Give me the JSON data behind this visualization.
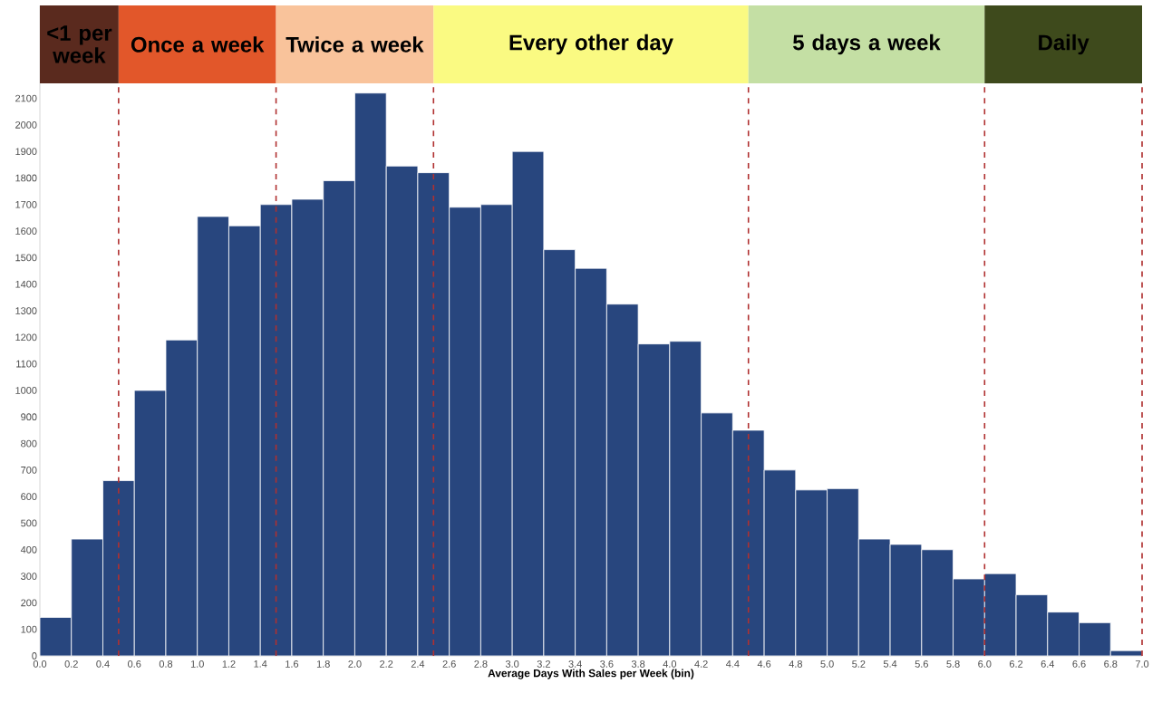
{
  "chart_data": {
    "type": "histogram",
    "xlabel": "Average Days With Sales per Week (bin)",
    "bins": [
      0.0,
      0.2,
      0.4,
      0.6,
      0.8,
      1.0,
      1.2,
      1.4,
      1.6,
      1.8,
      2.0,
      2.2,
      2.4,
      2.6,
      2.8,
      3.0,
      3.2,
      3.4,
      3.6,
      3.8,
      4.0,
      4.2,
      4.4,
      4.6,
      4.8,
      5.0,
      5.2,
      5.4,
      5.6,
      5.8,
      6.0,
      6.2,
      6.4,
      6.6,
      6.8,
      7.0
    ],
    "values": [
      145,
      440,
      660,
      1000,
      1190,
      1655,
      1620,
      1700,
      1720,
      1790,
      2120,
      1845,
      1820,
      1690,
      1700,
      1900,
      1530,
      1460,
      1325,
      1175,
      1185,
      915,
      850,
      700,
      625,
      630,
      440,
      420,
      400,
      290,
      310,
      230,
      165,
      125,
      20
    ],
    "color": "#28467e",
    "xlim": [
      0,
      7.0
    ],
    "ylim": [
      0,
      2450
    ],
    "xticks": [
      {
        "value": 0,
        "label": "0.0"
      },
      {
        "value": 0.2,
        "label": "0.2"
      },
      {
        "value": 0.4,
        "label": "0.4"
      },
      {
        "value": 0.6,
        "label": "0.6"
      },
      {
        "value": 0.8,
        "label": "0.8"
      },
      {
        "value": 1.0,
        "label": "1.0"
      },
      {
        "value": 1.2,
        "label": "1.2"
      },
      {
        "value": 1.4,
        "label": "1.4"
      },
      {
        "value": 1.6,
        "label": "1.6"
      },
      {
        "value": 1.8,
        "label": "1.8"
      },
      {
        "value": 2.0,
        "label": "2.0"
      },
      {
        "value": 2.2,
        "label": "2.2"
      },
      {
        "value": 2.4,
        "label": "2.4"
      },
      {
        "value": 2.6,
        "label": "2.6"
      },
      {
        "value": 2.8,
        "label": "2.8"
      },
      {
        "value": 3.0,
        "label": "3.0"
      },
      {
        "value": 3.2,
        "label": "3.2"
      },
      {
        "value": 3.4,
        "label": "3.4"
      },
      {
        "value": 3.6,
        "label": "3.6"
      },
      {
        "value": 3.8,
        "label": "3.8"
      },
      {
        "value": 4.0,
        "label": "4.0"
      },
      {
        "value": 4.2,
        "label": "4.2"
      },
      {
        "value": 4.4,
        "label": "4.4"
      },
      {
        "value": 4.6,
        "label": "4.6"
      },
      {
        "value": 4.8,
        "label": "4.8"
      },
      {
        "value": 5.0,
        "label": "5.0"
      },
      {
        "value": 5.2,
        "label": "5.2"
      },
      {
        "value": 5.4,
        "label": "5.4"
      },
      {
        "value": 5.6,
        "label": "5.6"
      },
      {
        "value": 5.8,
        "label": "5.8"
      },
      {
        "value": 6.0,
        "label": "6.0"
      },
      {
        "value": 6.2,
        "label": "6.2"
      },
      {
        "value": 6.4,
        "label": "6.4"
      },
      {
        "value": 6.6,
        "label": "6.6"
      },
      {
        "value": 6.8,
        "label": "6.8"
      },
      {
        "value": 7.0,
        "label": "7.0"
      }
    ],
    "yticks": [
      0,
      100,
      200,
      300,
      400,
      500,
      600,
      700,
      800,
      900,
      1000,
      1100,
      1200,
      1300,
      1400,
      1500,
      1600,
      1700,
      1800,
      1900,
      2000,
      2100
    ],
    "bands": [
      {
        "axis": "x",
        "from": 0,
        "to": 0.5,
        "label": "<1 per week",
        "color": "#5a2a1e"
      },
      {
        "axis": "x",
        "from": 0.5,
        "to": 1.5,
        "label": "Once a week",
        "color": "#e2572a"
      },
      {
        "axis": "x",
        "from": 1.5,
        "to": 2.5,
        "label": "Twice a week",
        "color": "#f9c39b"
      },
      {
        "axis": "x",
        "from": 2.5,
        "to": 4.5,
        "label": "Every other day",
        "color": "#fafa82"
      },
      {
        "axis": "x",
        "from": 4.5,
        "to": 6.0,
        "label": "5 days a week",
        "color": "#c4dfa4"
      },
      {
        "axis": "x",
        "from": 6.0,
        "to": 7.0,
        "label": "Daily",
        "color": "#3e4a1c"
      }
    ],
    "ref_lines": [
      {
        "axis": "x",
        "value": 0.5,
        "color": "#b03030",
        "line_style": "dashed"
      },
      {
        "axis": "x",
        "value": 1.5,
        "color": "#b03030",
        "line_style": "dashed"
      },
      {
        "axis": "x",
        "value": 2.5,
        "color": "#b03030",
        "line_style": "dashed"
      },
      {
        "axis": "x",
        "value": 4.5,
        "color": "#b03030",
        "line_style": "dashed"
      },
      {
        "axis": "x",
        "value": 6.0,
        "color": "#b03030",
        "line_style": "dashed"
      },
      {
        "axis": "x",
        "value": 7.0,
        "color": "#b03030",
        "line_style": "dashed"
      }
    ]
  }
}
